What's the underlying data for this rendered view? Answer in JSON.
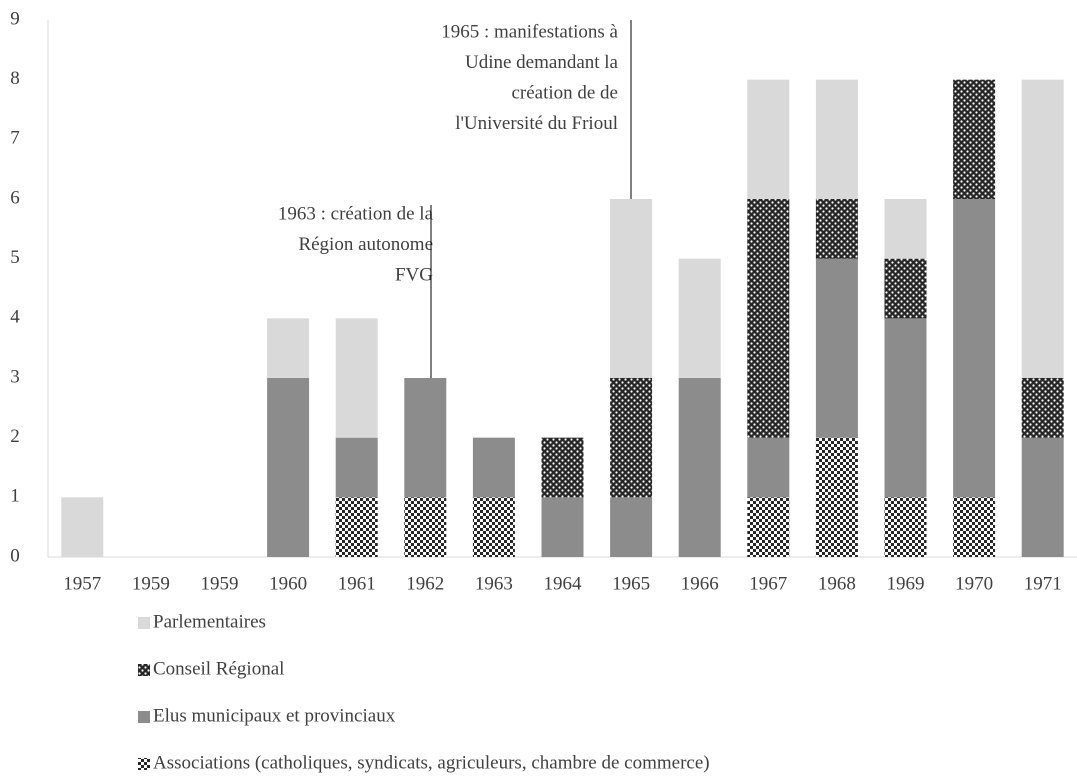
{
  "chart_data": {
    "type": "stacked_bar",
    "categories": [
      "1957",
      "1959",
      "1959",
      "1960",
      "1961",
      "1962",
      "1963",
      "1964",
      "1965",
      "1966",
      "1967",
      "1968",
      "1969",
      "1970",
      "1971"
    ],
    "series": [
      {
        "name": "Parlementaires",
        "color": "#d9d9d9",
        "pattern": "solid",
        "values": [
          1,
          0,
          0,
          1,
          2,
          0,
          0,
          0,
          3,
          2,
          2,
          2,
          1,
          0,
          5
        ]
      },
      {
        "name": "Conseil Régional",
        "color": "#262626",
        "pattern": "dots",
        "values": [
          0,
          0,
          0,
          0,
          0,
          0,
          0,
          1,
          2,
          0,
          4,
          1,
          1,
          2,
          1
        ]
      },
      {
        "name": "Elus municipaux et provinciaux",
        "color": "#8c8c8c",
        "pattern": "solid",
        "values": [
          0,
          0,
          0,
          3,
          1,
          2,
          1,
          1,
          1,
          3,
          1,
          3,
          3,
          5,
          2
        ]
      },
      {
        "name": "Associations (catholiques, syndicats,  agriculeurs, chambre de commerce)",
        "color": "#262626",
        "pattern": "checker",
        "values": [
          0,
          0,
          0,
          0,
          1,
          1,
          1,
          0,
          0,
          0,
          1,
          2,
          1,
          1,
          0
        ]
      }
    ],
    "ylim": [
      0,
      9
    ],
    "yticks": [
      0,
      1,
      2,
      3,
      4,
      5,
      6,
      7,
      8,
      9
    ],
    "grid": false,
    "annotations": [
      {
        "lines": [
          "1963 : création de la",
          "Région autonome",
          "FVG"
        ]
      },
      {
        "lines": [
          "1965 : manifestations à",
          "Udine demandant la",
          "création de de",
          "l'Université du Frioul"
        ]
      }
    ]
  }
}
